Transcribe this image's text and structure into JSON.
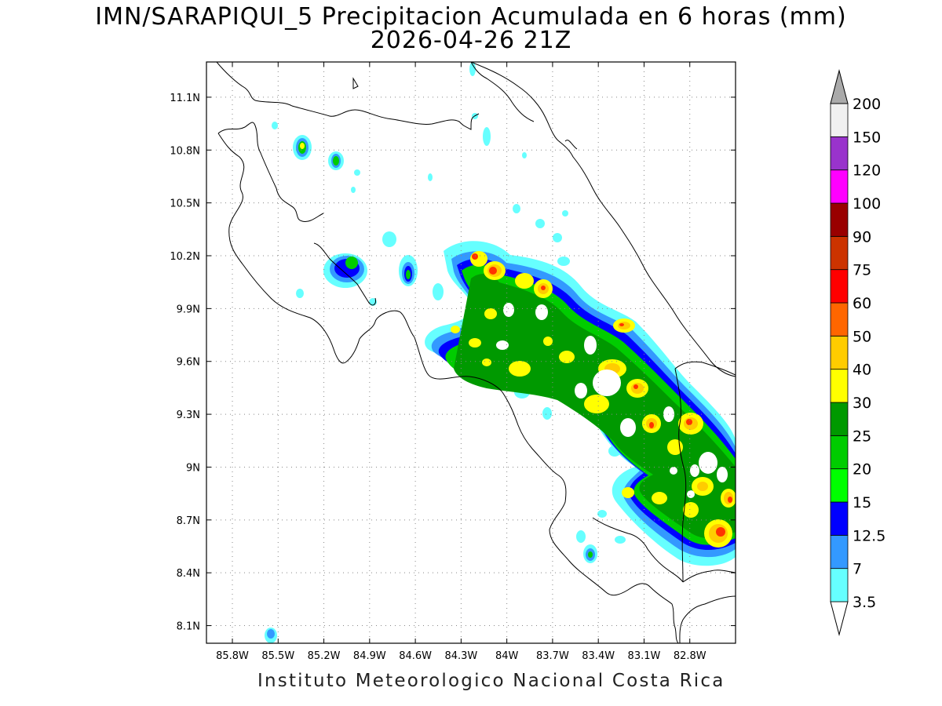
{
  "title": {
    "line1": "IMN/SARAPIQUI_5 Precipitacion Acumulada en 6 horas (mm)",
    "line2": "2026-04-26 21Z"
  },
  "footer": "Instituto Meteorologico Nacional Costa Rica",
  "map": {
    "lon_labels": [
      "85.8W",
      "85.5W",
      "85.2W",
      "84.9W",
      "84.6W",
      "84.3W",
      "84W",
      "83.7W",
      "83.4W",
      "83.1W",
      "82.8W"
    ],
    "lon_values": [
      -85.8,
      -85.5,
      -85.2,
      -84.9,
      -84.6,
      -84.3,
      -84.0,
      -83.7,
      -83.4,
      -83.1,
      -82.8
    ],
    "lat_labels": [
      "11.1N",
      "10.8N",
      "10.5N",
      "10.2N",
      "9.9N",
      "9.6N",
      "9.3N",
      "9N",
      "8.7N",
      "8.4N",
      "8.1N"
    ],
    "lat_values": [
      11.1,
      10.8,
      10.5,
      10.2,
      9.9,
      9.6,
      9.3,
      9.0,
      8.7,
      8.4,
      8.1
    ],
    "extent": {
      "lon_min": -85.97,
      "lon_max": -82.5,
      "lat_min": 8.0,
      "lat_max": 11.3
    }
  },
  "colorbar": {
    "labels": [
      "3.5",
      "7",
      "12.5",
      "15",
      "20",
      "25",
      "30",
      "40",
      "50",
      "60",
      "75",
      "90",
      "100",
      "120",
      "150",
      "200"
    ],
    "colors": [
      "#66ffff",
      "#3399ff",
      "#0000ff",
      "#00ff00",
      "#00cc00",
      "#009900",
      "#ffff00",
      "#ffcc00",
      "#ff6600",
      "#ff0000",
      "#cc3300",
      "#990000",
      "#ff00ff",
      "#9933cc",
      "#f0f0f0",
      "#aaaaaa"
    ],
    "below_color": "#ffffff"
  }
}
